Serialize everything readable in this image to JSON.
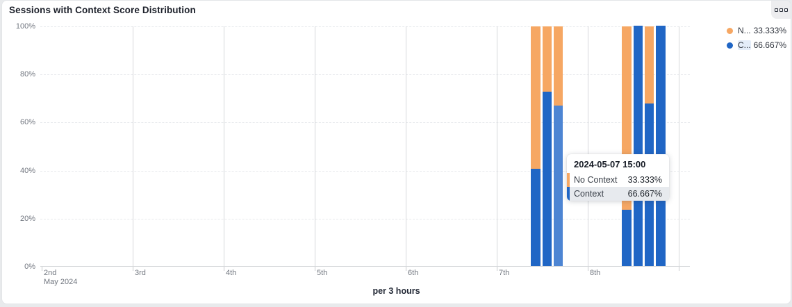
{
  "card": {
    "title": "Sessions with Context Score Distribution"
  },
  "menu_button": {
    "icon": "three-squares-menu-icon"
  },
  "legend": {
    "items": [
      {
        "name_truncated": "N...",
        "value": "33.333%",
        "color": "#F6A763",
        "highlighted": false
      },
      {
        "name_truncated": "C...",
        "value": "66.667%",
        "color": "#2066C5",
        "highlighted": true
      }
    ]
  },
  "tooltip": {
    "title": "2024-05-07 15:00",
    "rows": [
      {
        "label": "No Context",
        "value": "33.333%",
        "color": "#F6A763",
        "highlighted": false
      },
      {
        "label": "Context",
        "value": "66.667%",
        "color": "#2066C5",
        "highlighted": true
      }
    ]
  },
  "chart_data": {
    "type": "bar",
    "stacked": true,
    "unit": "percent",
    "title": "Sessions with Context Score Distribution",
    "xlabel": "per 3 hours",
    "ylabel": "",
    "ylim": [
      0,
      100
    ],
    "y_ticks": [
      "0%",
      "20%",
      "40%",
      "60%",
      "80%",
      "100%"
    ],
    "x_axis_days": [
      {
        "label": "2nd",
        "sublabel": "May 2024"
      },
      {
        "label": "3rd"
      },
      {
        "label": "4th"
      },
      {
        "label": "5th"
      },
      {
        "label": "6th"
      },
      {
        "label": "7th"
      },
      {
        "label": "8th"
      },
      {
        "label": ""
      }
    ],
    "bin_hours": 3,
    "bars": [
      {
        "time": "2024-05-07 09:00",
        "context_pct": 40.5,
        "no_context_pct": 59.5
      },
      {
        "time": "2024-05-07 12:00",
        "context_pct": 72.5,
        "no_context_pct": 27.5
      },
      {
        "time": "2024-05-07 15:00",
        "context_pct": 66.667,
        "no_context_pct": 33.333
      },
      {
        "time": "2024-05-08 09:00",
        "context_pct": 23.5,
        "no_context_pct": 76.5
      },
      {
        "time": "2024-05-08 12:00",
        "context_pct": 100,
        "no_context_pct": 0
      },
      {
        "time": "2024-05-08 15:00",
        "context_pct": 67.5,
        "no_context_pct": 32.5
      },
      {
        "time": "2024-05-08 18:00",
        "context_pct": 100,
        "no_context_pct": 0
      }
    ],
    "series": [
      {
        "name": "Context",
        "color": "#2066C5",
        "values": [
          40.5,
          72.5,
          66.667,
          23.5,
          100,
          67.5,
          100
        ]
      },
      {
        "name": "No Context",
        "color": "#F6A763",
        "values": [
          59.5,
          27.5,
          33.333,
          76.5,
          0,
          32.5,
          0
        ]
      }
    ],
    "highlighted_time": "2024-05-07 15:00",
    "colors": {
      "context": "#2066C5",
      "context_highlight": "#4D85D3",
      "no_context": "#F6A763"
    },
    "legend_position": "top-right",
    "grid": {
      "horizontal": "dashed",
      "vertical": "solid-day-lines"
    }
  }
}
